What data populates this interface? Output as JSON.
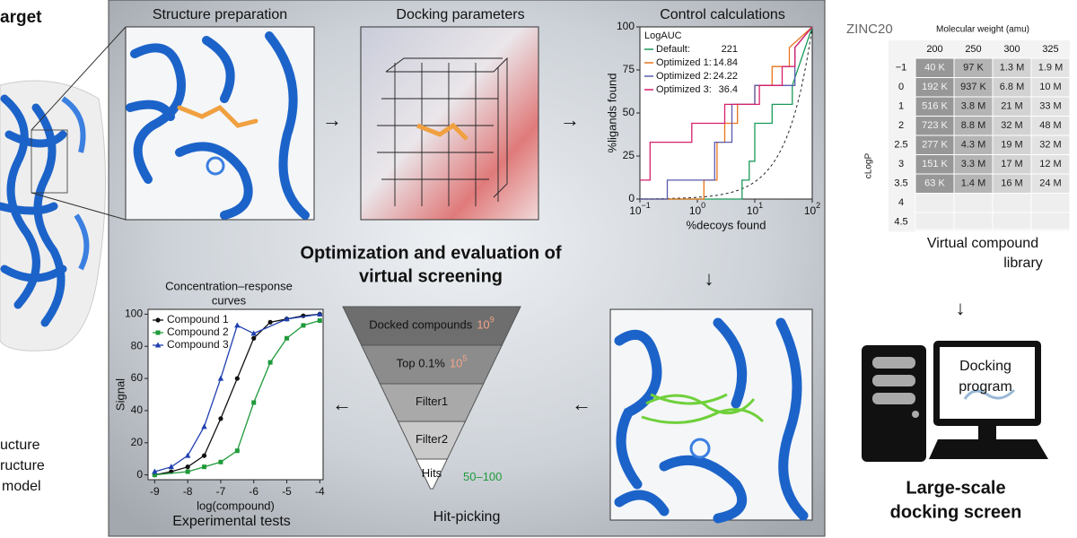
{
  "left": {
    "title": "arget",
    "caption": [
      "ucture",
      "ructure",
      "model"
    ]
  },
  "panels": {
    "structure_preparation": "Structure preparation",
    "docking_parameters": "Docking parameters",
    "control_calculations": "Control calculations",
    "heading": [
      "Optimization and evaluation of",
      "virtual screening"
    ],
    "hit_picking": "Hit-picking",
    "experimental_tests": "Experimental tests"
  },
  "funnel": [
    {
      "label": "Docked compounds",
      "count": {
        "base": "10",
        "exponent": "9"
      }
    },
    {
      "label": "Top 0.1%",
      "count": {
        "base": "10",
        "exponent": "5"
      }
    },
    {
      "label": "Filter1"
    },
    {
      "label": "Filter2"
    },
    {
      "label": "Hits",
      "count": "50–100"
    }
  ],
  "roc": {
    "type": "line",
    "xlabel": "%decoys found",
    "ylabel": "%ligands found",
    "log_x": true,
    "xlim": [
      0.1,
      100
    ],
    "ylim": [
      0,
      100
    ],
    "xticks": [
      {
        "value": 0.1,
        "label": "10",
        "exponent": "−1"
      },
      {
        "value": 1,
        "label": "10",
        "exponent": "0"
      },
      {
        "value": 10,
        "label": "10",
        "exponent": "1"
      },
      {
        "value": 100,
        "label": "10",
        "exponent": "2"
      }
    ],
    "yticks": [
      0,
      25,
      50,
      75,
      100
    ],
    "legend_title": "LogAUC",
    "series": [
      {
        "name": "Default:",
        "logauc": 221,
        "color": "#1a9a5a",
        "x": [
          0.1,
          6,
          6,
          8,
          8,
          10,
          10,
          20,
          20,
          45,
          45,
          100
        ],
        "y": [
          0,
          0,
          11,
          11,
          22,
          22,
          44,
          44,
          55,
          55,
          66,
          100
        ]
      },
      {
        "name": "Optimized 1:",
        "logauc": 14.84,
        "color": "#e8731c",
        "x": [
          0.1,
          1.3,
          1.3,
          2.2,
          2.2,
          3,
          3,
          5,
          5,
          10,
          10,
          20,
          20,
          40,
          40,
          100
        ],
        "y": [
          0,
          0,
          11,
          11,
          33,
          33,
          44,
          44,
          55,
          55,
          66,
          66,
          77,
          77,
          88,
          100
        ]
      },
      {
        "name": "Optimized 2:",
        "logauc": 24.22,
        "color": "#5a5ab0",
        "x": [
          0.1,
          0.3,
          0.3,
          2,
          2,
          4,
          4,
          10,
          10,
          50,
          50,
          100
        ],
        "y": [
          0,
          0,
          11,
          11,
          33,
          33,
          55,
          55,
          66,
          66,
          88,
          100
        ]
      },
      {
        "name": "Optimized 3:",
        "logauc": 36.4,
        "color": "#d6206a",
        "x": [
          0.1,
          0.15,
          0.15,
          0.8,
          0.8,
          3,
          3,
          12,
          12,
          30,
          30,
          50,
          50,
          100
        ],
        "y": [
          11,
          11,
          33,
          33,
          44,
          44,
          55,
          55,
          66,
          66,
          77,
          77,
          88,
          100
        ]
      }
    ]
  },
  "dose": {
    "type": "scatter",
    "title": [
      "Concentration–response",
      "curves"
    ],
    "xlabel": "log(compound)",
    "ylabel": "Signal",
    "xlim": [
      -9.2,
      -3.9
    ],
    "ylim": [
      -3,
      103
    ],
    "xticks": [
      -9,
      -8,
      -7,
      -6,
      -5,
      -4
    ],
    "yticks": [
      0,
      20,
      40,
      60,
      80,
      100
    ],
    "series": [
      {
        "name": "Compound 1",
        "color": "#111111",
        "marker": "circle",
        "x": [
          -9,
          -8.5,
          -8,
          -7.5,
          -7,
          -6.5,
          -6,
          -5.5,
          -5,
          -4.5,
          -4
        ],
        "y": [
          0,
          2,
          5,
          12,
          35,
          60,
          85,
          95,
          97,
          99,
          100
        ]
      },
      {
        "name": "Compound 2",
        "color": "#1f9a3a",
        "marker": "square",
        "x": [
          -9,
          -8,
          -7.5,
          -7,
          -6.5,
          -6,
          -5.5,
          -5,
          -4.5,
          -4
        ],
        "y": [
          0,
          2,
          5,
          8,
          15,
          45,
          70,
          85,
          93,
          96
        ]
      },
      {
        "name": "Compound 3",
        "color": "#1f3fb0",
        "marker": "triangle",
        "x": [
          -9,
          -8.5,
          -8,
          -7.5,
          -7,
          -6.5,
          -6,
          -5,
          -4
        ],
        "y": [
          2,
          5,
          12,
          30,
          60,
          93,
          88,
          97,
          100
        ]
      }
    ]
  },
  "library": {
    "title": "ZINC20",
    "column_title": "Molecular weight (amu)",
    "row_title": "cLogP",
    "columns": [
      "200",
      "250",
      "300",
      "325"
    ],
    "rows": [
      {
        "label": "−1",
        "cells": [
          "40 K",
          "97 K",
          "1.3 M",
          "1.9 M"
        ]
      },
      {
        "label": "0",
        "cells": [
          "192 K",
          "937 K",
          "6.8 M",
          "10 M"
        ]
      },
      {
        "label": "1",
        "cells": [
          "516 K",
          "3.8 M",
          "21 M",
          "33 M"
        ]
      },
      {
        "label": "2",
        "cells": [
          "723 K",
          "8.8 M",
          "32 M",
          "48 M"
        ]
      },
      {
        "label": "2.5",
        "cells": [
          "277 K",
          "4.3 M",
          "19 M",
          "32 M"
        ]
      },
      {
        "label": "3",
        "cells": [
          "151 K",
          "3.3 M",
          "17 M",
          "12 M"
        ]
      },
      {
        "label": "3.5",
        "cells": [
          "63 K",
          "1.4 M",
          "16 M",
          "24 M"
        ]
      },
      {
        "label": "4",
        "cells": []
      },
      {
        "label": "4.5",
        "cells": []
      }
    ],
    "caption": [
      "Virtual compound",
      "library"
    ]
  },
  "screen": {
    "program": [
      "Docking",
      "program"
    ],
    "title": [
      "Large-scale",
      "docking screen"
    ]
  }
}
